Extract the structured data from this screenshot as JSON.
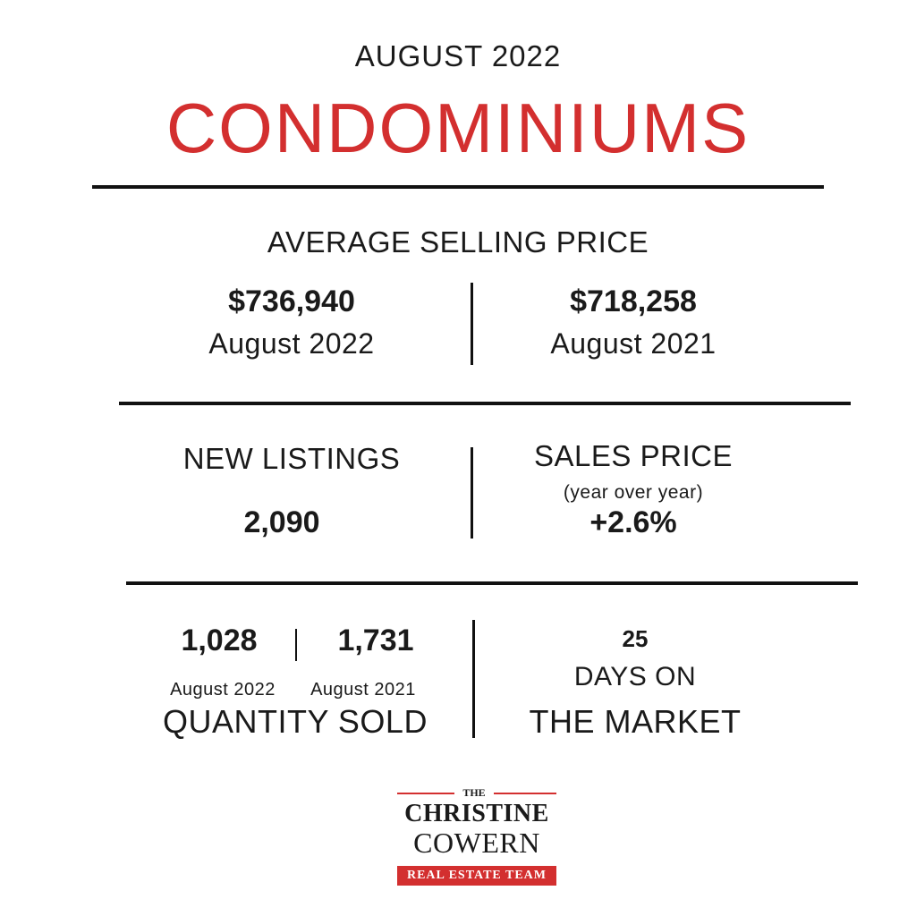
{
  "header": {
    "month_year": "AUGUST 2022",
    "title": "CONDOMINIUMS",
    "title_color": "#d32f2f"
  },
  "average_selling_price": {
    "label": "AVERAGE SELLING PRICE",
    "current_value": "$736,940",
    "current_period": "August 2022",
    "previous_value": "$718,258",
    "previous_period": "August 2021"
  },
  "new_listings": {
    "label": "NEW LISTINGS",
    "value": "2,090"
  },
  "sales_price": {
    "label": "SALES PRICE",
    "sublabel": "(year over year)",
    "value": "+2.6%"
  },
  "quantity_sold": {
    "current_value": "1,028",
    "current_period": "August 2022",
    "previous_value": "1,731",
    "previous_period": "August 2021",
    "label": "QUANTITY SOLD"
  },
  "days_on_market": {
    "value": "25",
    "label_line1": "DAYS ON",
    "label_line2": "THE MARKET"
  },
  "logo": {
    "the": "THE",
    "name_line1": "CHRISTINE",
    "name_line2": "COWERN",
    "tagline": "REAL ESTATE TEAM",
    "brand_color": "#d32f2f"
  }
}
